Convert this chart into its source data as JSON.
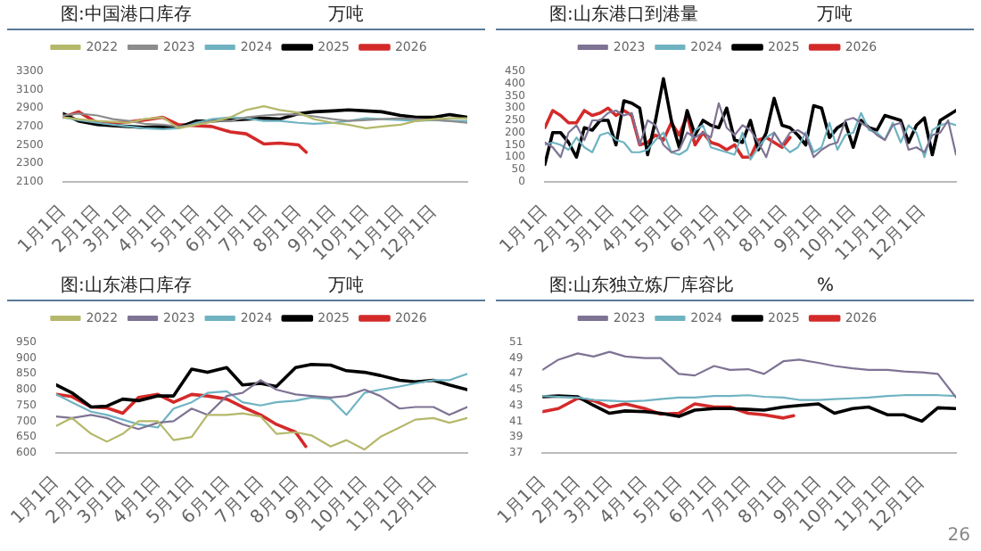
{
  "chart_data": [
    {
      "type": "line",
      "title": "图:中国港口库存",
      "subtitle": "万吨",
      "legend": "top",
      "marker": "none",
      "line_style": "solid",
      "x": [
        "--01-01",
        "--01-15",
        "--02-01",
        "--02-15",
        "--03-01",
        "--03-15",
        "--04-01",
        "--04-15",
        "--05-01",
        "--05-15",
        "--06-01",
        "--06-15",
        "--07-01",
        "--07-15",
        "--08-01",
        "--08-15",
        "--09-01",
        "--09-15",
        "--10-01",
        "--10-15",
        "--11-01",
        "--11-15",
        "--12-01",
        "--12-15",
        "--12-31"
      ],
      "xlim": [
        "--01-01",
        "--12-31"
      ],
      "xticks": [
        {
          "value": "--01-01",
          "label": "1月1日"
        },
        {
          "value": "--02-01",
          "label": "2月1日"
        },
        {
          "value": "--03-01",
          "label": "3月1日"
        },
        {
          "value": "--04-01",
          "label": "4月1日"
        },
        {
          "value": "--05-01",
          "label": "5月1日"
        },
        {
          "value": "--06-01",
          "label": "6月1日"
        },
        {
          "value": "--07-01",
          "label": "7月1日"
        },
        {
          "value": "--08-01",
          "label": "8月1日"
        },
        {
          "value": "--09-01",
          "label": "9月1日"
        },
        {
          "value": "--10-01",
          "label": "10月1日"
        },
        {
          "value": "--11-01",
          "label": "11月1日"
        },
        {
          "value": "--12-01",
          "label": "12月1日"
        }
      ],
      "ylim": [
        2100,
        3300
      ],
      "yticks": [
        2100,
        2300,
        2500,
        2700,
        2900,
        3100,
        3300
      ],
      "series": [
        {
          "name": "2022",
          "color": "#b5b86a",
          "values": [
            2800,
            2780,
            2760,
            2750,
            2740,
            2780,
            2800,
            2680,
            2720,
            2750,
            2800,
            2880,
            2920,
            2880,
            2850,
            2780,
            2740,
            2720,
            2680,
            2700,
            2720,
            2760,
            2780,
            2790,
            2790
          ]
        },
        {
          "name": "2023",
          "color": "#8c8c8c",
          "values": [
            2820,
            2840,
            2820,
            2780,
            2760,
            2730,
            2720,
            2700,
            2720,
            2760,
            2760,
            2800,
            2820,
            2830,
            2830,
            2810,
            2780,
            2760,
            2770,
            2780,
            2790,
            2780,
            2770,
            2760,
            2740
          ]
        },
        {
          "name": "2024",
          "color": "#6fb3c2",
          "values": [
            2800,
            2770,
            2740,
            2720,
            2700,
            2680,
            2670,
            2680,
            2740,
            2780,
            2800,
            2790,
            2760,
            2760,
            2740,
            2730,
            2740,
            2760,
            2790,
            2780,
            2770,
            2760,
            2770,
            2760,
            2760
          ]
        },
        {
          "name": "2025",
          "color": "#000000",
          "values": [
            2840,
            2760,
            2720,
            2710,
            2700,
            2690,
            2700,
            2690,
            2760,
            2760,
            2770,
            2780,
            2790,
            2780,
            2840,
            2860,
            2870,
            2880,
            2870,
            2860,
            2820,
            2800,
            2800,
            2830,
            2800
          ]
        },
        {
          "name": "2026",
          "color": "#d42a2a",
          "x": [
            "--01-01",
            "--01-15",
            "--02-01",
            "--02-15",
            "--03-01",
            "--03-15",
            "--04-01",
            "--04-15",
            "--05-01",
            "--05-15",
            "--06-01",
            "--06-15",
            "--07-01",
            "--07-15",
            "--08-01",
            "--08-08"
          ],
          "values": [
            2800,
            2860,
            2740,
            2740,
            2750,
            2770,
            2800,
            2720,
            2710,
            2700,
            2640,
            2620,
            2510,
            2520,
            2500,
            2420
          ]
        }
      ]
    },
    {
      "type": "line",
      "title": "图:山东港口到港量",
      "subtitle": "万吨",
      "legend": "top",
      "marker": "none",
      "line_style": "solid",
      "x": [
        "--01-01",
        "--01-08",
        "--01-15",
        "--01-22",
        "--01-29",
        "--02-05",
        "--02-12",
        "--02-19",
        "--02-26",
        "--03-05",
        "--03-12",
        "--03-19",
        "--03-26",
        "--04-02",
        "--04-09",
        "--04-16",
        "--04-23",
        "--04-30",
        "--05-07",
        "--05-14",
        "--05-21",
        "--05-28",
        "--06-04",
        "--06-11",
        "--06-18",
        "--06-25",
        "--07-02",
        "--07-09",
        "--07-16",
        "--07-23",
        "--07-30",
        "--08-06",
        "--08-13",
        "--08-20",
        "--08-27",
        "--09-03",
        "--09-10",
        "--09-17",
        "--09-24",
        "--10-01",
        "--10-08",
        "--10-15",
        "--10-22",
        "--10-29",
        "--11-05",
        "--11-12",
        "--11-19",
        "--11-26",
        "--12-03",
        "--12-10",
        "--12-17",
        "--12-24",
        "--12-31"
      ],
      "xlim": [
        "--01-01",
        "--12-31"
      ],
      "xticks": [
        {
          "value": "--01-01",
          "label": "1月1日"
        },
        {
          "value": "--02-01",
          "label": "2月1日"
        },
        {
          "value": "--03-01",
          "label": "3月1日"
        },
        {
          "value": "--04-01",
          "label": "4月1日"
        },
        {
          "value": "--05-01",
          "label": "5月1日"
        },
        {
          "value": "--06-01",
          "label": "6月1日"
        },
        {
          "value": "--07-01",
          "label": "7月1日"
        },
        {
          "value": "--08-01",
          "label": "8月1日"
        },
        {
          "value": "--09-01",
          "label": "9月1日"
        },
        {
          "value": "--10-01",
          "label": "10月1日"
        },
        {
          "value": "--11-01",
          "label": "11月1日"
        },
        {
          "value": "--12-01",
          "label": "12月1日"
        }
      ],
      "ylim": [
        0,
        450
      ],
      "yticks": [
        0,
        50,
        100,
        150,
        200,
        250,
        300,
        350,
        400,
        450
      ],
      "series": [
        {
          "name": "2023",
          "color": "#7f7394",
          "values": [
            160,
            140,
            100,
            200,
            230,
            170,
            250,
            250,
            280,
            290,
            270,
            280,
            150,
            250,
            230,
            150,
            120,
            130,
            200,
            180,
            200,
            180,
            320,
            220,
            190,
            230,
            210,
            160,
            100,
            200,
            150,
            200,
            210,
            190,
            100,
            130,
            150,
            160,
            250,
            260,
            240,
            220,
            190,
            170,
            230,
            240,
            130,
            140,
            120,
            190,
            200,
            250,
            110
          ]
        },
        {
          "name": "2024",
          "color": "#6fb3c2",
          "values": [
            150,
            160,
            150,
            130,
            180,
            140,
            120,
            190,
            200,
            170,
            160,
            120,
            120,
            130,
            170,
            200,
            120,
            110,
            130,
            210,
            230,
            140,
            130,
            120,
            110,
            200,
            90,
            140,
            180,
            200,
            150,
            120,
            140,
            200,
            120,
            140,
            240,
            130,
            190,
            200,
            280,
            210,
            200,
            170,
            240,
            160,
            230,
            200,
            100,
            210,
            230,
            240,
            230
          ]
        },
        {
          "name": "2025",
          "color": "#000000",
          "values": [
            70,
            200,
            200,
            160,
            100,
            220,
            210,
            250,
            250,
            150,
            330,
            320,
            300,
            110,
            250,
            420,
            250,
            140,
            290,
            190,
            250,
            230,
            220,
            300,
            170,
            160,
            250,
            130,
            200,
            340,
            230,
            220,
            190,
            150,
            310,
            300,
            180,
            220,
            240,
            140,
            250,
            220,
            210,
            270,
            260,
            250,
            160,
            230,
            260,
            110,
            250,
            270,
            290
          ]
        },
        {
          "name": "2026",
          "color": "#d42a2a",
          "values": [
            220,
            290,
            270,
            240,
            240,
            290,
            270,
            280,
            300,
            270,
            290,
            270,
            150,
            160,
            190,
            170,
            240,
            190,
            270,
            150,
            200,
            160,
            150,
            130,
            150,
            100,
            100,
            170,
            180,
            160,
            140,
            180,
            null,
            null,
            null,
            null,
            null,
            null,
            null,
            null,
            null,
            null,
            null,
            null,
            null,
            null,
            null,
            null,
            null,
            null,
            null,
            null,
            null
          ]
        }
      ]
    },
    {
      "type": "line",
      "title": "图:山东港口库存",
      "subtitle": "万吨",
      "legend": "top",
      "marker": "none",
      "line_style": "solid",
      "x": [
        "--01-01",
        "--01-15",
        "--02-01",
        "--02-15",
        "--03-01",
        "--03-15",
        "--04-01",
        "--04-15",
        "--05-01",
        "--05-15",
        "--06-01",
        "--06-15",
        "--07-01",
        "--07-15",
        "--08-01",
        "--08-15",
        "--09-01",
        "--09-15",
        "--10-01",
        "--10-15",
        "--11-01",
        "--11-15",
        "--12-01",
        "--12-15",
        "--12-31"
      ],
      "xlim": [
        "--01-01",
        "--12-31"
      ],
      "xticks": [
        {
          "value": "--01-01",
          "label": "1月1日"
        },
        {
          "value": "--02-01",
          "label": "2月1日"
        },
        {
          "value": "--03-01",
          "label": "3月1日"
        },
        {
          "value": "--04-01",
          "label": "4月1日"
        },
        {
          "value": "--05-01",
          "label": "5月1日"
        },
        {
          "value": "--06-01",
          "label": "6月1日"
        },
        {
          "value": "--07-01",
          "label": "7月1日"
        },
        {
          "value": "--08-01",
          "label": "8月1日"
        },
        {
          "value": "--09-01",
          "label": "9月1日"
        },
        {
          "value": "--10-01",
          "label": "10月1日"
        },
        {
          "value": "--11-01",
          "label": "11月1日"
        },
        {
          "value": "--12-01",
          "label": "12月1日"
        }
      ],
      "ylim": [
        600,
        950
      ],
      "yticks": [
        600,
        650,
        700,
        750,
        800,
        850,
        900,
        950
      ],
      "series": [
        {
          "name": "2022",
          "color": "#b5b86a",
          "values": [
            685,
            710,
            660,
            635,
            660,
            700,
            700,
            640,
            650,
            720,
            720,
            725,
            715,
            660,
            665,
            655,
            620,
            640,
            610,
            650,
            680,
            705,
            710,
            695,
            710
          ]
        },
        {
          "name": "2023",
          "color": "#7f7394",
          "values": [
            715,
            710,
            720,
            710,
            690,
            675,
            695,
            700,
            740,
            720,
            780,
            790,
            830,
            800,
            785,
            780,
            775,
            780,
            800,
            780,
            740,
            745,
            745,
            720,
            745
          ]
        },
        {
          "name": "2024",
          "color": "#6fb3c2",
          "values": [
            785,
            760,
            730,
            720,
            705,
            690,
            680,
            740,
            760,
            790,
            795,
            760,
            750,
            760,
            765,
            775,
            770,
            720,
            790,
            800,
            810,
            820,
            830,
            830,
            850
          ]
        },
        {
          "name": "2025",
          "color": "#000000",
          "values": [
            815,
            790,
            745,
            748,
            770,
            765,
            780,
            780,
            865,
            855,
            870,
            815,
            820,
            810,
            870,
            880,
            878,
            860,
            855,
            845,
            830,
            825,
            830,
            815,
            800
          ]
        },
        {
          "name": "2026",
          "color": "#d42a2a",
          "x": [
            "--01-01",
            "--01-15",
            "--02-01",
            "--02-15",
            "--03-01",
            "--03-15",
            "--04-01",
            "--04-15",
            "--05-01",
            "--05-15",
            "--06-01",
            "--06-15",
            "--07-01",
            "--07-15",
            "--08-01",
            "--08-10"
          ],
          "values": [
            785,
            778,
            745,
            742,
            725,
            775,
            785,
            760,
            785,
            780,
            770,
            745,
            720,
            690,
            665,
            620
          ]
        }
      ]
    },
    {
      "type": "line",
      "title": "图:山东独立炼厂库容比",
      "subtitle": "%",
      "legend": "top",
      "marker": "none",
      "line_style": "solid",
      "annotations": [
        "26"
      ],
      "x": [
        "--01-01",
        "--01-15",
        "--02-01",
        "--02-15",
        "--03-01",
        "--03-15",
        "--04-01",
        "--04-15",
        "--05-01",
        "--05-15",
        "--06-01",
        "--06-15",
        "--07-01",
        "--07-15",
        "--08-01",
        "--08-15",
        "--09-01",
        "--09-15",
        "--10-01",
        "--10-15",
        "--11-01",
        "--11-15",
        "--12-01",
        "--12-15",
        "--12-31"
      ],
      "xlim": [
        "--01-01",
        "--12-31"
      ],
      "xticks": [
        {
          "value": "--01-01",
          "label": "1月1日"
        },
        {
          "value": "--02-01",
          "label": "2月1日"
        },
        {
          "value": "--03-01",
          "label": "3月1日"
        },
        {
          "value": "--04-01",
          "label": "4月1日"
        },
        {
          "value": "--05-01",
          "label": "5月1日"
        },
        {
          "value": "--06-01",
          "label": "6月1日"
        },
        {
          "value": "--07-01",
          "label": "7月1日"
        },
        {
          "value": "--08-01",
          "label": "8月1日"
        },
        {
          "value": "--09-01",
          "label": "9月1日"
        },
        {
          "value": "--10-01",
          "label": "10月1日"
        },
        {
          "value": "--11-01",
          "label": "11月1日"
        },
        {
          "value": "--12-01",
          "label": "12月1日"
        }
      ],
      "ylim": [
        37,
        51
      ],
      "yticks": [
        37,
        39,
        41,
        43,
        45,
        47,
        49,
        51
      ],
      "series": [
        {
          "name": "2023",
          "color": "#7f7394",
          "values": [
            47.5,
            48.8,
            49.6,
            49.2,
            49.8,
            49.2,
            49.0,
            49.0,
            47.0,
            46.8,
            48.0,
            47.5,
            47.6,
            47.0,
            48.6,
            48.8,
            48.4,
            48.0,
            47.7,
            47.5,
            47.5,
            47.3,
            47.2,
            47.0,
            44.0
          ]
        },
        {
          "name": "2024",
          "color": "#6fb3c2",
          "values": [
            44.2,
            44.1,
            44.0,
            43.7,
            43.6,
            43.5,
            43.6,
            43.8,
            44.0,
            44.0,
            44.2,
            44.2,
            44.3,
            44.1,
            44.0,
            43.7,
            43.7,
            43.8,
            43.9,
            44.0,
            44.2,
            44.3,
            44.3,
            44.3,
            44.2
          ]
        },
        {
          "name": "2025",
          "color": "#000000",
          "values": [
            44.1,
            44.2,
            44.1,
            43.0,
            42.0,
            42.3,
            42.2,
            42.0,
            41.6,
            42.4,
            42.6,
            42.6,
            42.5,
            42.4,
            42.8,
            43.0,
            43.2,
            42.0,
            42.6,
            42.8,
            41.8,
            41.8,
            41.0,
            42.7,
            42.6
          ]
        },
        {
          "name": "2026",
          "color": "#d42a2a",
          "x": [
            "--01-01",
            "--01-15",
            "--02-01",
            "--02-15",
            "--03-01",
            "--03-15",
            "--04-01",
            "--04-15",
            "--05-01",
            "--05-15",
            "--06-01",
            "--06-15",
            "--07-01",
            "--07-15",
            "--08-01",
            "--08-10"
          ],
          "values": [
            42.2,
            42.6,
            43.9,
            43.6,
            42.8,
            43.2,
            42.6,
            41.9,
            42.0,
            43.2,
            42.8,
            42.8,
            42.0,
            41.8,
            41.4,
            41.7
          ]
        }
      ]
    }
  ]
}
